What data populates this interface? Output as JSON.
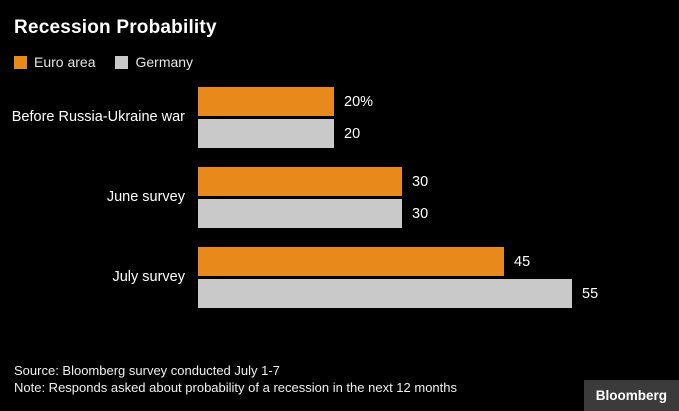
{
  "title": "Recession Probability",
  "legend": [
    {
      "label": "Euro area",
      "color": "#e8891c"
    },
    {
      "label": "Germany",
      "color": "#c9c9c9"
    }
  ],
  "chart_data": {
    "type": "bar",
    "orientation": "horizontal",
    "title": "Recession Probability",
    "categories": [
      "Before Russia-Ukraine war",
      "June survey",
      "July survey"
    ],
    "series": [
      {
        "name": "Euro area",
        "color": "#e8891c",
        "values": [
          20,
          30,
          45
        ],
        "value_labels": [
          "20%",
          "30",
          "45"
        ]
      },
      {
        "name": "Germany",
        "color": "#c9c9c9",
        "values": [
          20,
          30,
          55
        ],
        "value_labels": [
          "20",
          "30",
          "55"
        ]
      }
    ],
    "xlim": [
      0,
      55
    ],
    "grid": false,
    "legend_position": "top-left"
  },
  "footer": {
    "source": "Source: Bloomberg survey conducted July 1-7",
    "note": "Note: Responds asked about probability of a recession in the next 12 months",
    "brand": "Bloomberg"
  }
}
